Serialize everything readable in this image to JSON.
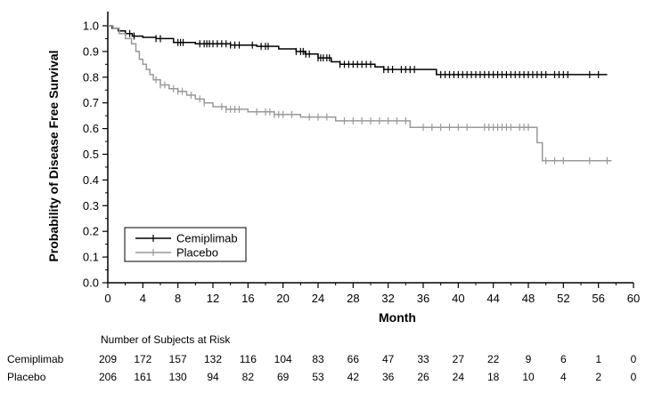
{
  "chart_data": {
    "type": "line",
    "subtype": "kaplan-meier",
    "title": "",
    "xlabel": "Month",
    "ylabel": "Probability of Disease Free Survival",
    "xlim": [
      0,
      60
    ],
    "ylim": [
      0.0,
      1.0
    ],
    "xticks": [
      "0",
      "4",
      "8",
      "12",
      "16",
      "20",
      "24",
      "28",
      "32",
      "36",
      "40",
      "44",
      "48",
      "52",
      "56",
      "60"
    ],
    "yticks": [
      "0.0",
      "0.1",
      "0.2",
      "0.3",
      "0.4",
      "0.5",
      "0.6",
      "0.7",
      "0.8",
      "0.9",
      "1.0"
    ],
    "legend_position": "bottom-left",
    "series": [
      {
        "name": "Cemiplimab",
        "color": "#000000",
        "steps": [
          [
            0,
            1.0
          ],
          [
            0.5,
            0.99
          ],
          [
            1.2,
            0.98
          ],
          [
            2,
            0.97
          ],
          [
            2.8,
            0.96
          ],
          [
            4,
            0.955
          ],
          [
            5.5,
            0.95
          ],
          [
            7.5,
            0.935
          ],
          [
            10,
            0.93
          ],
          [
            14,
            0.925
          ],
          [
            17,
            0.92
          ],
          [
            19.5,
            0.91
          ],
          [
            21.5,
            0.9
          ],
          [
            22.5,
            0.89
          ],
          [
            24,
            0.875
          ],
          [
            25.5,
            0.86
          ],
          [
            26.5,
            0.85
          ],
          [
            30.5,
            0.84
          ],
          [
            31.5,
            0.83
          ],
          [
            37.5,
            0.81
          ],
          [
            57,
            0.81
          ]
        ],
        "censor": [
          2.5,
          3,
          5.5,
          6,
          8,
          8.3,
          8.6,
          10.5,
          11,
          11.3,
          11.6,
          12,
          12.5,
          13,
          13.5,
          14,
          14.5,
          15,
          16.5,
          17.5,
          18,
          18.3,
          21.5,
          22,
          22.3,
          22.6,
          23,
          24,
          24.3,
          24.6,
          25,
          25.3,
          26.5,
          27,
          27.5,
          28,
          28.5,
          29,
          29.5,
          30,
          31.5,
          32,
          32.5,
          33.5,
          34,
          34.5,
          35,
          38,
          38.5,
          39,
          39.5,
          40,
          40.5,
          41,
          41.5,
          42,
          42.5,
          43,
          43.5,
          44,
          44.5,
          45,
          45.5,
          46,
          46.5,
          47,
          47.5,
          48,
          48.5,
          49,
          49.5,
          50,
          51,
          51.5,
          52,
          52.5,
          55,
          56
        ]
      },
      {
        "name": "Placebo",
        "color": "#999999",
        "steps": [
          [
            0,
            1.0
          ],
          [
            0.6,
            0.99
          ],
          [
            1.3,
            0.97
          ],
          [
            2,
            0.95
          ],
          [
            2.7,
            0.93
          ],
          [
            3.2,
            0.9
          ],
          [
            3.6,
            0.87
          ],
          [
            4,
            0.85
          ],
          [
            4.4,
            0.83
          ],
          [
            4.8,
            0.81
          ],
          [
            5.2,
            0.79
          ],
          [
            6,
            0.77
          ],
          [
            7,
            0.755
          ],
          [
            8,
            0.745
          ],
          [
            9,
            0.73
          ],
          [
            10,
            0.715
          ],
          [
            11,
            0.7
          ],
          [
            12,
            0.685
          ],
          [
            13.5,
            0.675
          ],
          [
            16,
            0.665
          ],
          [
            19,
            0.655
          ],
          [
            22,
            0.645
          ],
          [
            26,
            0.63
          ],
          [
            34.5,
            0.605
          ],
          [
            49,
            0.545
          ],
          [
            49.6,
            0.475
          ],
          [
            57.5,
            0.475
          ]
        ],
        "censor": [
          5.5,
          6,
          6.5,
          7.5,
          8,
          8.5,
          9.5,
          10.5,
          11,
          13,
          13.5,
          14,
          14.5,
          15,
          17,
          18,
          18.5,
          19,
          19.5,
          20,
          21,
          23,
          24,
          25,
          27,
          28,
          29,
          30,
          31,
          32,
          33,
          34,
          36,
          37,
          38,
          39,
          40,
          41,
          43,
          43.5,
          44,
          44.5,
          45,
          45.5,
          46,
          47,
          47.5,
          48,
          50,
          51,
          52,
          55,
          57
        ]
      }
    ],
    "risk_table": {
      "title": "Number of Subjects at Risk",
      "times": [
        0,
        4,
        8,
        12,
        16,
        20,
        24,
        28,
        32,
        36,
        40,
        44,
        48,
        52,
        56,
        60
      ],
      "rows": [
        {
          "name": "Cemiplimab",
          "values": [
            "209",
            "172",
            "157",
            "132",
            "116",
            "104",
            "83",
            "66",
            "47",
            "33",
            "27",
            "22",
            "9",
            "6",
            "1",
            "0"
          ]
        },
        {
          "name": "Placebo",
          "values": [
            "206",
            "161",
            "130",
            "94",
            "82",
            "69",
            "53",
            "42",
            "36",
            "26",
            "24",
            "18",
            "10",
            "4",
            "2",
            "0"
          ]
        }
      ]
    }
  }
}
